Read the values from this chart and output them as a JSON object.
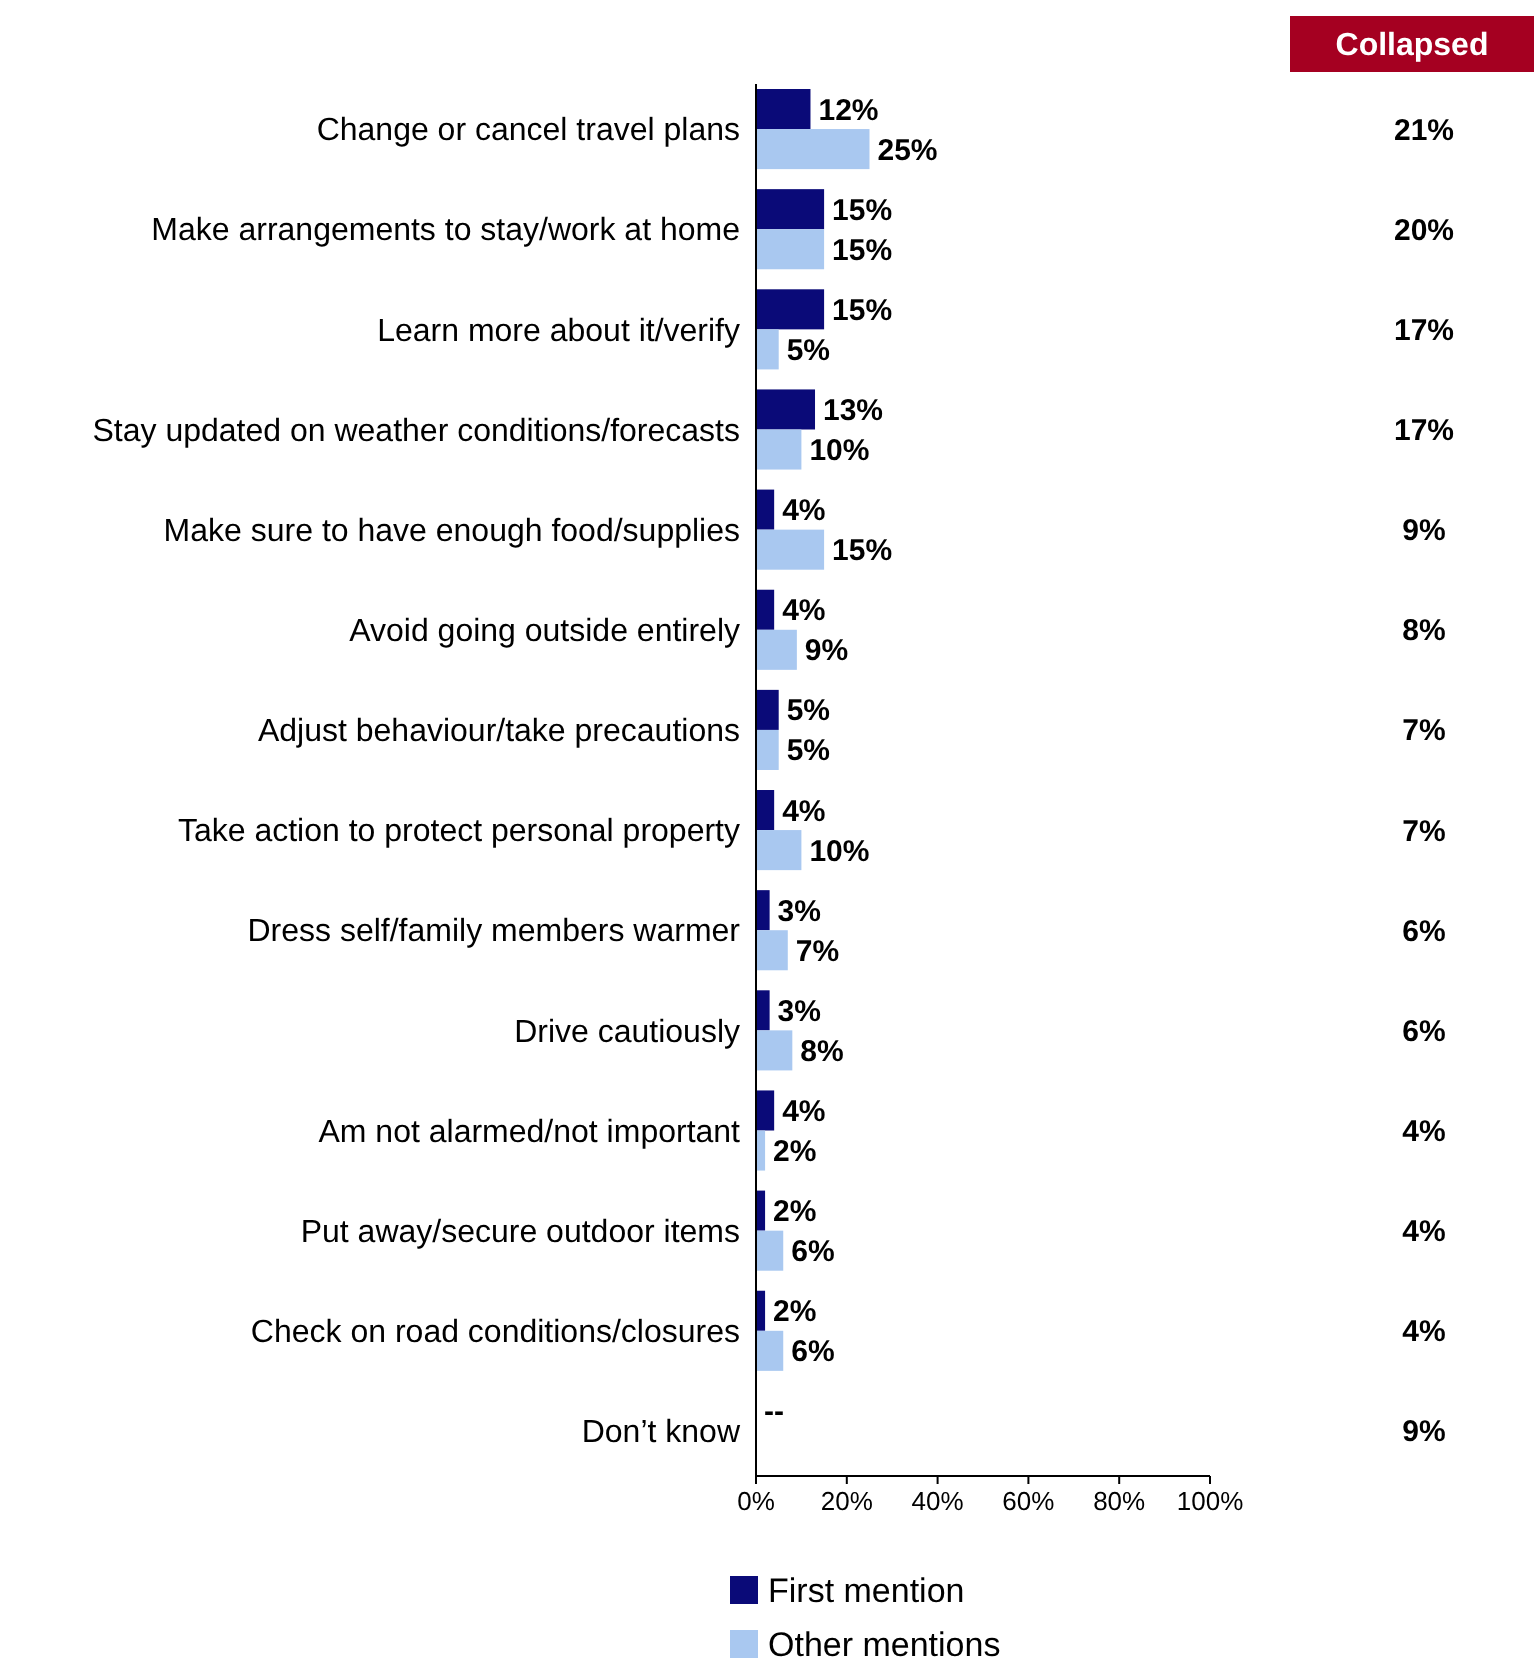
{
  "chart_data": {
    "type": "bar",
    "orientation": "horizontal",
    "categories": [
      "Change or cancel travel plans",
      "Make arrangements to stay/work at home",
      "Learn more about it/verify",
      "Stay updated on weather conditions/forecasts",
      "Make sure to have enough food/supplies",
      "Avoid going outside entirely",
      "Adjust behaviour/take precautions",
      "Take action to protect personal property",
      "Dress self/family members warmer",
      "Drive cautiously",
      "Am not alarmed/not important",
      "Put away/secure outdoor items",
      "Check on road conditions/closures",
      "Don’t know"
    ],
    "series": [
      {
        "name": "First mention",
        "color": "#0a0a78",
        "values": [
          12,
          15,
          15,
          13,
          4,
          4,
          5,
          4,
          3,
          3,
          4,
          2,
          2,
          null
        ],
        "value_labels": [
          "12%",
          "15%",
          "15%",
          "13%",
          "4%",
          "4%",
          "5%",
          "4%",
          "3%",
          "3%",
          "4%",
          "2%",
          "2%",
          "--"
        ]
      },
      {
        "name": "Other mentions",
        "color": "#a9c8f0",
        "values": [
          25,
          15,
          5,
          10,
          15,
          9,
          5,
          10,
          7,
          8,
          2,
          6,
          6,
          null
        ],
        "value_labels": [
          "25%",
          "15%",
          "5%",
          "10%",
          "15%",
          "9%",
          "5%",
          "10%",
          "7%",
          "8%",
          "2%",
          "6%",
          "6%",
          null
        ]
      }
    ],
    "xlim": [
      0,
      100
    ],
    "xticks": [
      {
        "value": 0,
        "label": "0%"
      },
      {
        "value": 20,
        "label": "20%"
      },
      {
        "value": 40,
        "label": "40%"
      },
      {
        "value": 60,
        "label": "60%"
      },
      {
        "value": 80,
        "label": "80%"
      },
      {
        "value": 100,
        "label": "100%"
      }
    ],
    "legend": "bottom",
    "annotations": [
      "Collapsed",
      "21%",
      "20%",
      "17%",
      "17%",
      "9%",
      "8%",
      "7%",
      "7%",
      "6%",
      "6%",
      "4%",
      "4%",
      "4%",
      "9%"
    ]
  }
}
